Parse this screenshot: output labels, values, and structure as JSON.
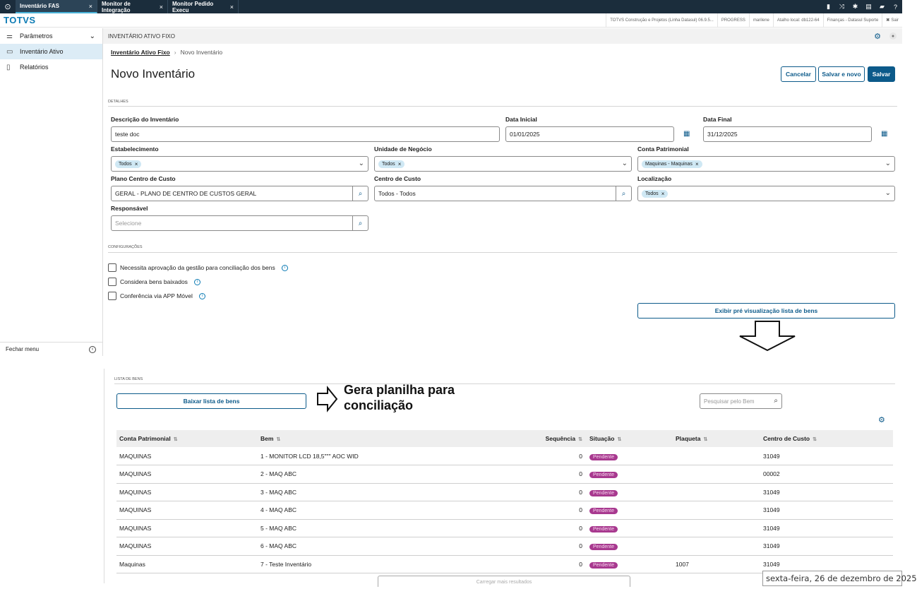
{
  "topbar": {
    "tabs": [
      {
        "label": "Inventário FAS",
        "active": true
      },
      {
        "label": "Monitor de Integração",
        "active": false
      },
      {
        "label": "Monitor Pedido Execu",
        "active": false
      }
    ],
    "close_glyph": "×",
    "icons": [
      "signal-icon",
      "shuffle-icon",
      "gear-icon",
      "document-icon",
      "chat-icon",
      "help-icon"
    ]
  },
  "brandbar": {
    "brand": "TOTVS",
    "context": [
      "TOTVS Construção e Projetos (Linha Datasul) 06.9.5...",
      "PROGRESS",
      "marilene",
      "Atalho local: db122-64",
      "Finanças - Datasul Suporte",
      "Sair"
    ]
  },
  "sidebar": {
    "items": [
      {
        "label": "Parâmetros"
      },
      {
        "label": "Inventário Ativo"
      },
      {
        "label": "Relatórios"
      }
    ],
    "footer": "Fechar menu"
  },
  "main": {
    "header": "INVENTÁRIO ATIVO FIXO",
    "breadcrumb": {
      "link": "Inventário Ativo Fixo",
      "current": "Novo Inventário"
    },
    "title": "Novo Inventário",
    "buttons": {
      "cancel": "Cancelar",
      "save_new": "Salvar e novo",
      "save": "Salvar"
    }
  },
  "details": {
    "section": "DETALHES",
    "descricao": {
      "label": "Descrição do Inventário",
      "value": "teste doc"
    },
    "data_inicial": {
      "label": "Data Inicial",
      "value": "01/01/2025"
    },
    "data_final": {
      "label": "Data Final",
      "value": "31/12/2025"
    },
    "estabelecimento": {
      "label": "Estabelecimento",
      "chip": "Todos"
    },
    "unidade": {
      "label": "Unidade de Negócio",
      "chip": "Todos"
    },
    "conta": {
      "label": "Conta Patrimonial",
      "chip": "Maquinas - Maquinas"
    },
    "plano": {
      "label": "Plano Centro de Custo",
      "value": "GERAL - PLANO DE CENTRO DE CUSTOS GERAL"
    },
    "centro": {
      "label": "Centro de Custo",
      "value": "Todos - Todos"
    },
    "localizacao": {
      "label": "Localização",
      "chip": "Todos"
    },
    "responsavel": {
      "label": "Responsável",
      "placeholder": "Selecione"
    }
  },
  "config": {
    "section": "CONFIGURAÇÕES",
    "options": [
      "Necessita aprovação da gestão para conciliação dos bens",
      "Considera bens baixados",
      "Conferência via APP Móvel"
    ],
    "preview_button": "Exibir pré visualização lista de bens"
  },
  "annotation": {
    "line1": "Gera planilha para",
    "line2": "conciliação"
  },
  "list": {
    "section": "LISTA DE BENS",
    "download_button": "Baixar lista de bens",
    "search_placeholder": "Pesquisar pelo Bem",
    "columns": [
      "Conta Patrimonial",
      "Bem",
      "Sequência",
      "Situação",
      "Plaqueta",
      "Centro de Custo"
    ],
    "rows": [
      {
        "conta": "MAQUINAS",
        "bem": "1 - MONITOR LCD 18,5\"\"\" AOC WID",
        "seq": "0",
        "situacao": "Pendente",
        "plaqueta": "",
        "centro": "31049"
      },
      {
        "conta": "MAQUINAS",
        "bem": "2 - MAQ ABC",
        "seq": "0",
        "situacao": "Pendente",
        "plaqueta": "",
        "centro": "00002"
      },
      {
        "conta": "MAQUINAS",
        "bem": "3 - MAQ ABC",
        "seq": "0",
        "situacao": "Pendente",
        "plaqueta": "",
        "centro": "31049"
      },
      {
        "conta": "MAQUINAS",
        "bem": "4 - MAQ ABC",
        "seq": "0",
        "situacao": "Pendente",
        "plaqueta": "",
        "centro": "31049"
      },
      {
        "conta": "MAQUINAS",
        "bem": "5 - MAQ ABC",
        "seq": "0",
        "situacao": "Pendente",
        "plaqueta": "",
        "centro": "31049"
      },
      {
        "conta": "MAQUINAS",
        "bem": "6 - MAQ ABC",
        "seq": "0",
        "situacao": "Pendente",
        "plaqueta": "",
        "centro": "31049"
      },
      {
        "conta": "Maquinas",
        "bem": "7 - Teste Inventário",
        "seq": "0",
        "situacao": "Pendente",
        "plaqueta": "1007",
        "centro": "31049"
      }
    ],
    "load_more": "Carregar mais resultados"
  },
  "date_overlay": "sexta-feira, 26 de dezembro de 2025",
  "colors": {
    "primary": "#0c5a8a",
    "topbar": "#1b2d3c",
    "badge": "#a8398f",
    "brand": "#0c7bb4"
  }
}
